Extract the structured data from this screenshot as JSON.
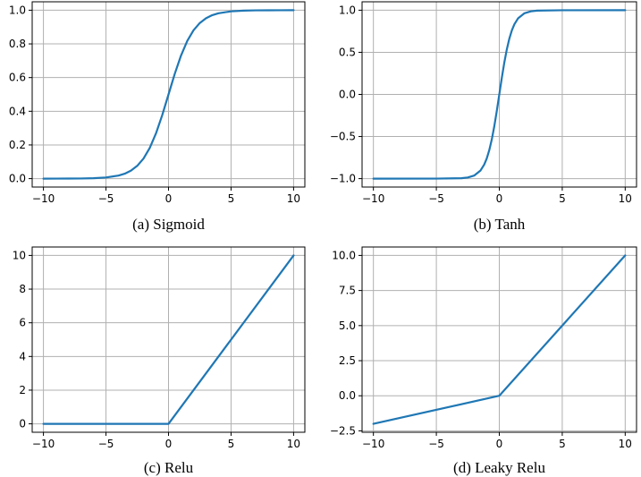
{
  "figure": {
    "line_color": "#1f77b4",
    "grid": true
  },
  "chart_data": [
    {
      "type": "line",
      "title": "(a) Sigmoid",
      "function": "sigmoid",
      "xlabel": "",
      "ylabel": "",
      "xlim": [
        -10.9,
        10.9
      ],
      "ylim": [
        -0.05,
        1.05
      ],
      "xticks": [
        -10,
        -5,
        0,
        5,
        10
      ],
      "xtick_labels": [
        "−10",
        "−5",
        "0",
        "5",
        "10"
      ],
      "yticks": [
        0.0,
        0.2,
        0.4,
        0.6,
        0.8,
        1.0
      ],
      "ytick_labels": [
        "0.0",
        "0.2",
        "0.4",
        "0.6",
        "0.8",
        "1.0"
      ],
      "series": [
        {
          "name": "Sigmoid",
          "x": [
            -10,
            -9,
            -8,
            -7,
            -6,
            -5,
            -4,
            -3.5,
            -3,
            -2.5,
            -2,
            -1.5,
            -1,
            -0.5,
            0,
            0.5,
            1,
            1.5,
            2,
            2.5,
            3,
            3.5,
            4,
            5,
            6,
            7,
            8,
            9,
            10
          ],
          "y": [
            0.0,
            0.0001,
            0.0003,
            0.0009,
            0.0025,
            0.0067,
            0.018,
            0.0293,
            0.0474,
            0.0759,
            0.1192,
            0.1824,
            0.2689,
            0.3775,
            0.5,
            0.6225,
            0.7311,
            0.8176,
            0.8808,
            0.9241,
            0.9526,
            0.9707,
            0.982,
            0.9933,
            0.9975,
            0.9991,
            0.9997,
            0.9999,
            1.0
          ]
        }
      ]
    },
    {
      "type": "line",
      "title": "(b) Tanh",
      "function": "tanh",
      "xlabel": "",
      "ylabel": "",
      "xlim": [
        -10.9,
        10.9
      ],
      "ylim": [
        -1.1,
        1.1
      ],
      "xticks": [
        -10,
        -5,
        0,
        5,
        10
      ],
      "xtick_labels": [
        "−10",
        "−5",
        "0",
        "5",
        "10"
      ],
      "yticks": [
        -1.0,
        -0.5,
        0.0,
        0.5,
        1.0
      ],
      "ytick_labels": [
        "−1.0",
        "−0.5",
        "0.0",
        "0.5",
        "1.0"
      ],
      "series": [
        {
          "name": "Tanh",
          "x": [
            -10,
            -5,
            -3,
            -2.5,
            -2,
            -1.5,
            -1.2,
            -1,
            -0.8,
            -0.6,
            -0.4,
            -0.2,
            0,
            0.2,
            0.4,
            0.6,
            0.8,
            1,
            1.2,
            1.5,
            2,
            2.5,
            3,
            5,
            10
          ],
          "y": [
            -1.0,
            -0.9999,
            -0.9951,
            -0.9866,
            -0.964,
            -0.9051,
            -0.8337,
            -0.7616,
            -0.664,
            -0.537,
            -0.3799,
            -0.1974,
            0.0,
            0.1974,
            0.3799,
            0.537,
            0.664,
            0.7616,
            0.8337,
            0.9051,
            0.964,
            0.9866,
            0.9951,
            0.9999,
            1.0
          ]
        }
      ]
    },
    {
      "type": "line",
      "title": "(c) Relu",
      "function": "relu",
      "xlabel": "",
      "ylabel": "",
      "xlim": [
        -10.9,
        10.9
      ],
      "ylim": [
        -0.5,
        10.5
      ],
      "xticks": [
        -10,
        -5,
        0,
        5,
        10
      ],
      "xtick_labels": [
        "−10",
        "−5",
        "0",
        "5",
        "10"
      ],
      "yticks": [
        0,
        2,
        4,
        6,
        8,
        10
      ],
      "ytick_labels": [
        "0",
        "2",
        "4",
        "6",
        "8",
        "10"
      ],
      "series": [
        {
          "name": "Relu",
          "x": [
            -10,
            0,
            0.3,
            10
          ],
          "y": [
            0,
            0,
            0.3,
            10
          ]
        }
      ]
    },
    {
      "type": "line",
      "title": "(d) Leaky Relu",
      "function": "leaky_relu",
      "xlabel": "",
      "ylabel": "",
      "xlim": [
        -10.9,
        10.9
      ],
      "ylim": [
        -2.6,
        10.6
      ],
      "xticks": [
        -10,
        -5,
        0,
        5,
        10
      ],
      "xtick_labels": [
        "−10",
        "−5",
        "0",
        "5",
        "10"
      ],
      "yticks": [
        -2.5,
        0.0,
        2.5,
        5.0,
        7.5,
        10.0
      ],
      "ytick_labels": [
        "−2.5",
        "0.0",
        "2.5",
        "5.0",
        "7.5",
        "10.0"
      ],
      "series": [
        {
          "name": "Leaky Relu",
          "x": [
            -10,
            0,
            0.3,
            10
          ],
          "y": [
            -2,
            0,
            0.3,
            10
          ]
        }
      ]
    }
  ]
}
